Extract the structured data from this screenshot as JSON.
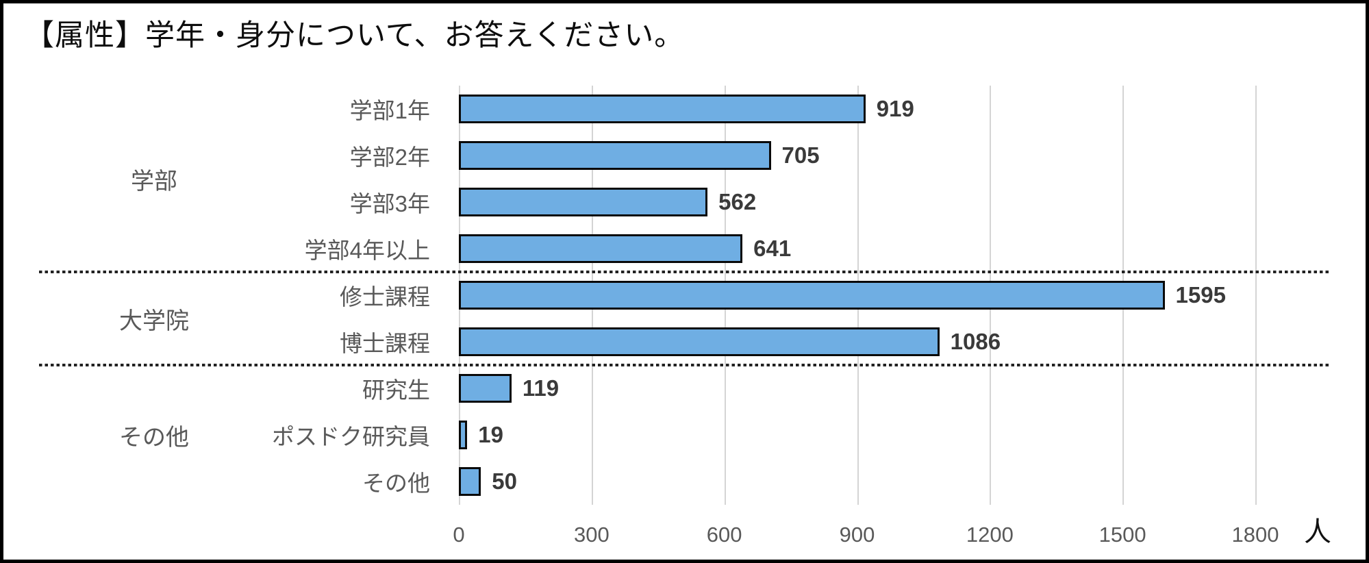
{
  "title": "【属性】学年・身分について、お答えください。",
  "chart_data": {
    "type": "bar",
    "orientation": "horizontal",
    "title": "【属性】学年・身分について、お答えください。",
    "x_unit": "人",
    "xlim": [
      0,
      1800
    ],
    "x_ticks": [
      "0",
      "300",
      "600",
      "900",
      "1200",
      "1500",
      "1800"
    ],
    "grid": true,
    "value_labels": true,
    "bar_color": "#6FAEE3",
    "bar_border_color": "#0A0A0A",
    "groups": [
      {
        "label": "学部",
        "items": [
          {
            "label": "学部1年",
            "value": 919
          },
          {
            "label": "学部2年",
            "value": 705
          },
          {
            "label": "学部3年",
            "value": 562
          },
          {
            "label": "学部4年以上",
            "value": 641
          }
        ]
      },
      {
        "label": "大学院",
        "items": [
          {
            "label": "修士課程",
            "value": 1595
          },
          {
            "label": "博士課程",
            "value": 1086
          }
        ]
      },
      {
        "label": "その他",
        "items": [
          {
            "label": "研究生",
            "value": 119
          },
          {
            "label": "ポスドク研究員",
            "value": 19
          },
          {
            "label": "その他",
            "value": 50
          }
        ]
      }
    ]
  }
}
